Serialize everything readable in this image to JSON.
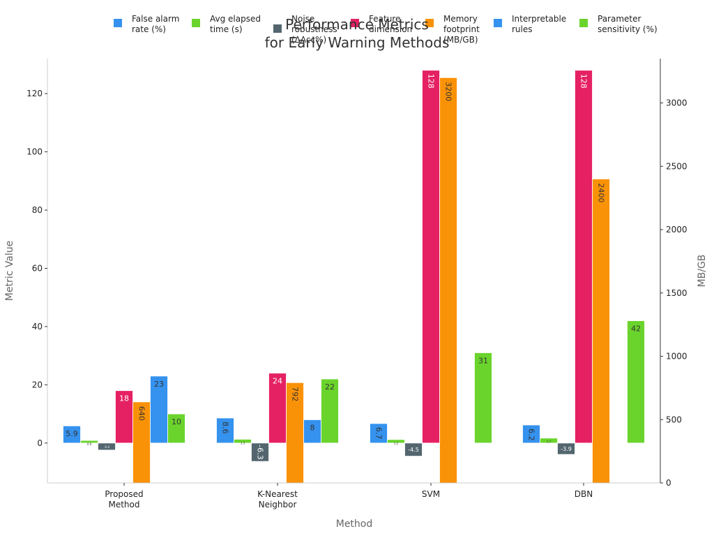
{
  "chart_data": {
    "type": "bar",
    "title": [
      "Performance Metrics",
      "for Early Warning Methods"
    ],
    "xlabel": "Method",
    "ylabel": "Metric Value",
    "y2label": "MB/GB",
    "ylim": [
      -13.7,
      132
    ],
    "y2lim": [
      0,
      3350
    ],
    "yticks": [
      0,
      20,
      40,
      60,
      80,
      100,
      120
    ],
    "y2ticks": [
      0,
      500,
      1000,
      1500,
      2000,
      2500,
      3000
    ],
    "categories": [
      [
        "Proposed",
        "Method"
      ],
      [
        "K-Nearest",
        "Neighbor"
      ],
      [
        "SVM"
      ],
      [
        "DBN"
      ]
    ],
    "series": [
      {
        "name": [
          "False alarm",
          "rate (%)"
        ],
        "color": "#3592ee",
        "axis": "left",
        "values": [
          5.9,
          8.6,
          6.7,
          6.2
        ],
        "labels": [
          "5.9",
          "8.6",
          "6.7",
          "6.2"
        ],
        "rotate": [
          false,
          true,
          true,
          true
        ],
        "label_color": "#333333"
      },
      {
        "name": [
          "Avg elapsed",
          "time (s)"
        ],
        "color": "#6ad42c",
        "axis": "left",
        "values": [
          0.9,
          1.3,
          1.2,
          1.7
        ],
        "labels": [
          "0.9",
          "1.3",
          "1.2",
          "1.7"
        ],
        "rotate": [
          false,
          false,
          false,
          false
        ],
        "label_color": "#333333",
        "tiny": true
      },
      {
        "name": [
          "Noise",
          "robustness",
          "(ΔAcc%)"
        ],
        "color": "#53666f",
        "axis": "left",
        "values": [
          -2.4,
          -6.3,
          -4.5,
          -3.9
        ],
        "labels": [
          "-2.4",
          "-6.3",
          "-4.5",
          "-3.9"
        ],
        "rotate": [
          false,
          true,
          false,
          false
        ],
        "label_color": "#ffffff",
        "tiny_first": true
      },
      {
        "name": [
          "Feature",
          "dimension"
        ],
        "color": "#e52163",
        "axis": "left",
        "values": [
          18,
          24,
          128,
          128
        ],
        "labels": [
          "18",
          "24",
          "128",
          "128"
        ],
        "rotate": [
          false,
          false,
          true,
          true
        ],
        "label_color": "#ffffff"
      },
      {
        "name": [
          "Memory",
          "footprint",
          "(MB/GB)"
        ],
        "color": "#fa9208",
        "axis": "right",
        "values": [
          640,
          792,
          3200,
          2400
        ],
        "labels": [
          "640",
          "792",
          "3200",
          "2400"
        ],
        "rotate": [
          true,
          true,
          true,
          true
        ],
        "label_color": "#333333"
      },
      {
        "name": [
          "Interpretable",
          "rules"
        ],
        "color": "#3592ee",
        "axis": "left",
        "values": [
          23,
          8,
          null,
          null
        ],
        "labels": [
          "23",
          "8",
          "",
          ""
        ],
        "rotate": [
          false,
          false,
          false,
          false
        ],
        "label_color": "#333333"
      },
      {
        "name": [
          "Parameter",
          "sensitivity (%)"
        ],
        "color": "#6ad42c",
        "axis": "left",
        "values": [
          10,
          22,
          31,
          42
        ],
        "labels": [
          "10",
          "22",
          "31",
          "42"
        ],
        "rotate": [
          false,
          false,
          false,
          false
        ],
        "label_color": "#333333"
      }
    ],
    "legend_position": "top",
    "grid": false
  }
}
